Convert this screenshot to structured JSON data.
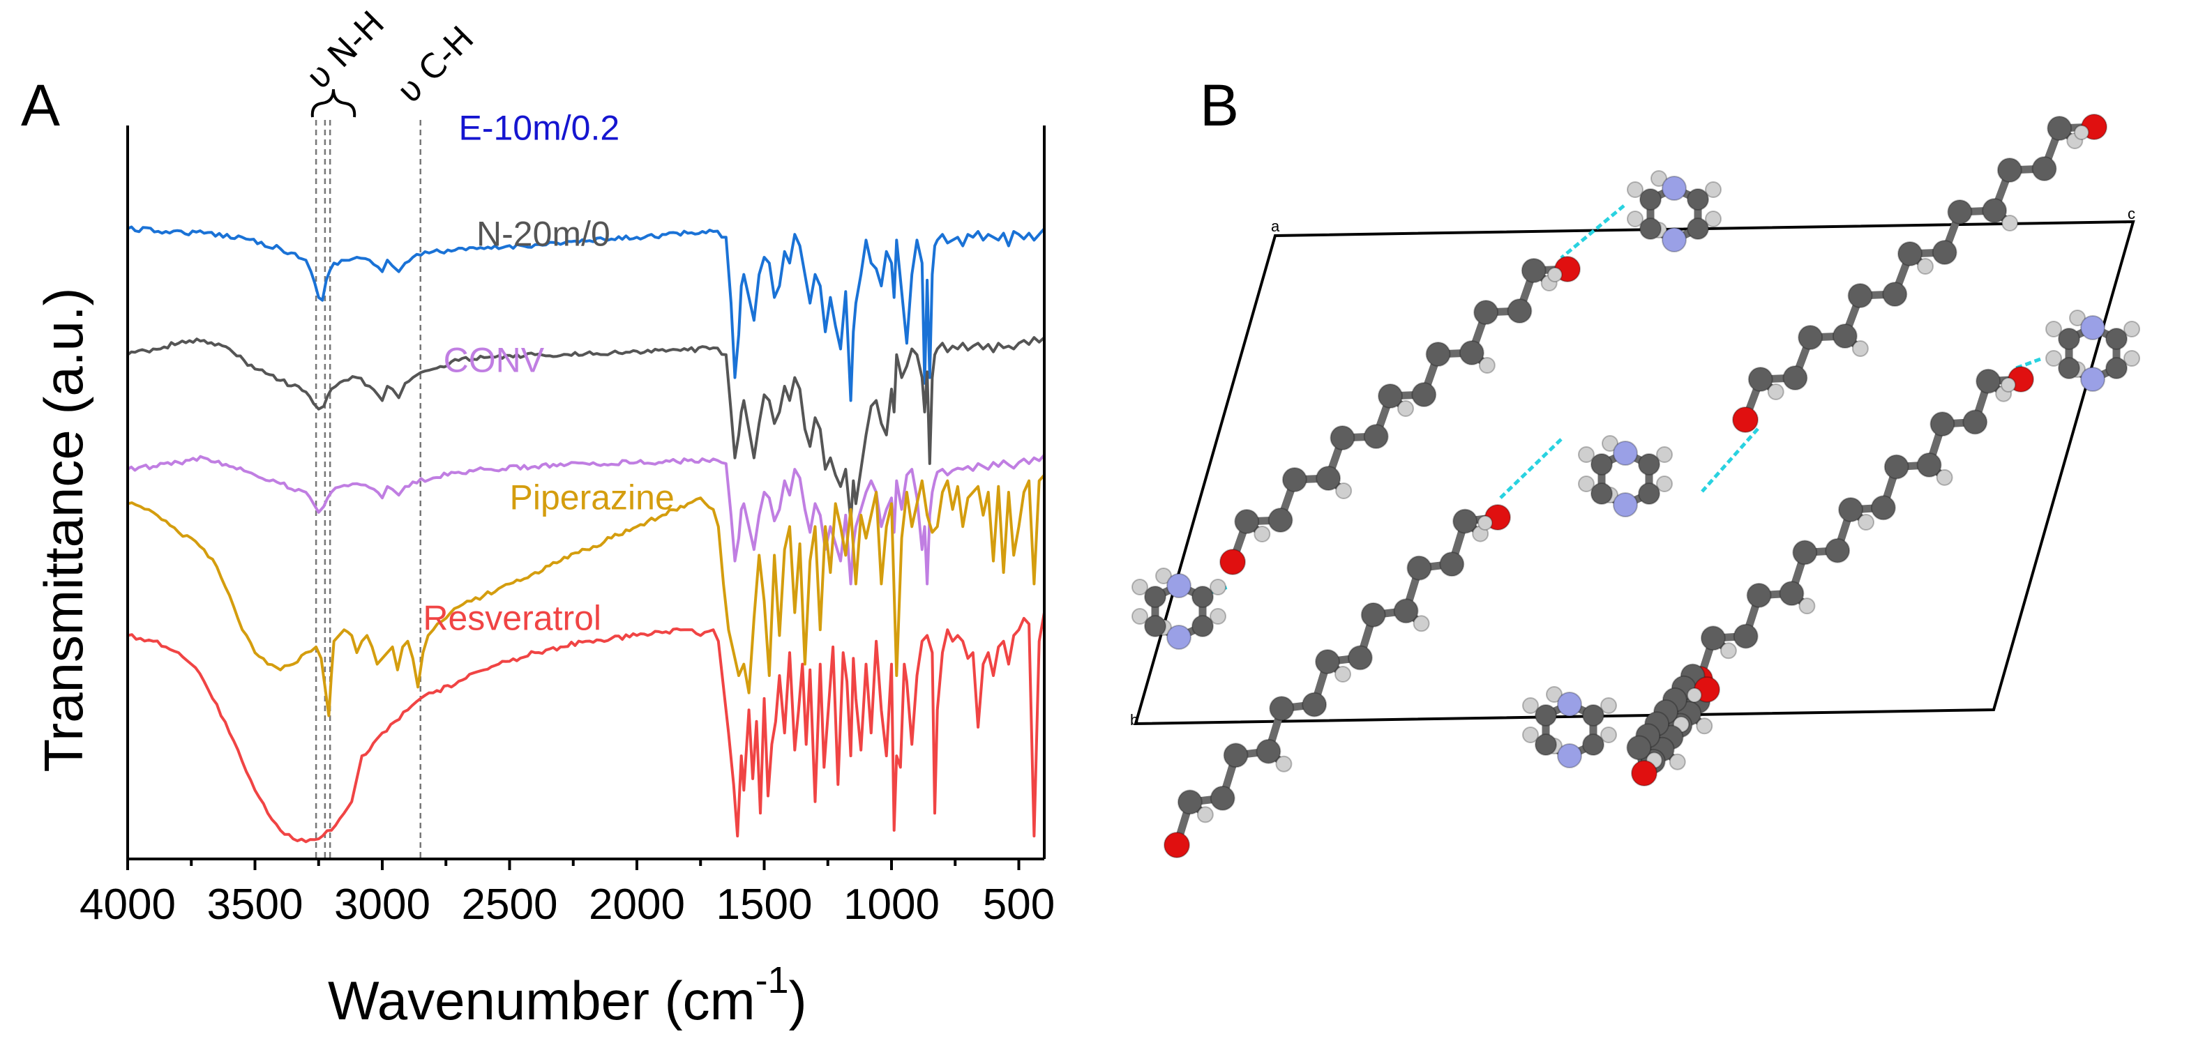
{
  "panels": {
    "a": "A",
    "b": "B"
  },
  "chart_data": {
    "type": "line",
    "title": "",
    "xlabel": "Wavenumber (cm",
    "xlabel_sup": "-1",
    "xlabel_close": ")",
    "ylabel": "Transmittance (a.u.)",
    "xlim": [
      4000,
      400
    ],
    "xticks": [
      4000,
      3500,
      3000,
      2500,
      2000,
      1500,
      1000,
      500
    ],
    "grid": false,
    "y_units": "arbitrary (stacked, offset)",
    "colors": {
      "E-10m/0.2": "#1a72d6",
      "N-20m/0": "#555555",
      "CONV": "#c07ee2",
      "Piperazine": "#d49d0e",
      "Resveratrol": "#f04444",
      "label_E": "#1515d0"
    },
    "annotations": [
      {
        "text": "υ N-H",
        "positions": [
          3260,
          3225,
          3205
        ]
      },
      {
        "text": "υ C-H",
        "positions": [
          2850
        ]
      }
    ],
    "series": [
      {
        "name": "E-10m/0.2",
        "label_pos": [
          2700,
          0.975
        ],
        "x": [
          4000,
          3850,
          3700,
          3550,
          3400,
          3300,
          3280,
          3250,
          3235,
          3220,
          3190,
          3100,
          3050,
          3000,
          2980,
          2960,
          2935,
          2910,
          2880,
          2800,
          2600,
          2400,
          2200,
          2000,
          1800,
          1700,
          1650,
          1630,
          1615,
          1600,
          1590,
          1580,
          1560,
          1540,
          1520,
          1500,
          1480,
          1460,
          1440,
          1420,
          1400,
          1380,
          1360,
          1340,
          1320,
          1300,
          1280,
          1260,
          1240,
          1220,
          1200,
          1180,
          1160,
          1150,
          1140,
          1120,
          1100,
          1080,
          1060,
          1040,
          1020,
          1000,
          990,
          980,
          960,
          940,
          920,
          900,
          880,
          870,
          860,
          850,
          840,
          830,
          820,
          800,
          780,
          760,
          740,
          720,
          700,
          680,
          660,
          640,
          620,
          600,
          580,
          560,
          540,
          520,
          500,
          480,
          460,
          440,
          420,
          400
        ],
        "y": [
          0.82,
          0.815,
          0.812,
          0.805,
          0.785,
          0.765,
          0.745,
          0.7,
          0.695,
          0.73,
          0.76,
          0.77,
          0.765,
          0.745,
          0.765,
          0.755,
          0.745,
          0.76,
          0.77,
          0.78,
          0.785,
          0.792,
          0.798,
          0.805,
          0.812,
          0.815,
          0.805,
          0.69,
          0.56,
          0.635,
          0.72,
          0.74,
          0.7,
          0.66,
          0.74,
          0.77,
          0.76,
          0.7,
          0.72,
          0.78,
          0.76,
          0.81,
          0.79,
          0.74,
          0.69,
          0.74,
          0.72,
          0.64,
          0.7,
          0.65,
          0.61,
          0.71,
          0.52,
          0.64,
          0.69,
          0.74,
          0.8,
          0.76,
          0.75,
          0.72,
          0.78,
          0.76,
          0.7,
          0.8,
          0.71,
          0.62,
          0.74,
          0.8,
          0.76,
          0.55,
          0.73,
          0.56,
          0.74,
          0.79,
          0.8,
          0.81,
          0.795,
          0.8,
          0.805,
          0.79,
          0.81,
          0.805,
          0.815,
          0.8,
          0.81,
          0.805,
          0.8,
          0.812,
          0.79,
          0.815,
          0.81,
          0.802,
          0.812,
          0.8,
          0.81,
          0.82
        ]
      },
      {
        "name": "N-20m/0",
        "label_pos": [
          2630,
          0.79
        ],
        "x": [
          4000,
          3900,
          3800,
          3700,
          3600,
          3500,
          3400,
          3300,
          3270,
          3250,
          3230,
          3200,
          3150,
          3100,
          3050,
          3000,
          2980,
          2960,
          2935,
          2910,
          2880,
          2800,
          2700,
          2600,
          2400,
          2200,
          2000,
          1800,
          1700,
          1650,
          1630,
          1615,
          1600,
          1590,
          1580,
          1560,
          1540,
          1520,
          1500,
          1480,
          1460,
          1440,
          1420,
          1400,
          1380,
          1360,
          1340,
          1320,
          1300,
          1280,
          1260,
          1240,
          1220,
          1200,
          1180,
          1160,
          1150,
          1140,
          1120,
          1100,
          1080,
          1060,
          1040,
          1020,
          1000,
          990,
          980,
          960,
          940,
          920,
          900,
          880,
          870,
          860,
          850,
          840,
          830,
          820,
          800,
          780,
          760,
          740,
          720,
          700,
          680,
          660,
          640,
          620,
          600,
          580,
          560,
          540,
          520,
          500,
          480,
          460,
          440,
          420,
          400
        ],
        "y": [
          0.6,
          0.61,
          0.62,
          0.625,
          0.61,
          0.575,
          0.555,
          0.535,
          0.515,
          0.505,
          0.51,
          0.54,
          0.555,
          0.56,
          0.545,
          0.52,
          0.545,
          0.54,
          0.525,
          0.55,
          0.56,
          0.575,
          0.59,
          0.595,
          0.6,
          0.602,
          0.606,
          0.608,
          0.612,
          0.6,
          0.5,
          0.42,
          0.46,
          0.5,
          0.52,
          0.47,
          0.42,
          0.48,
          0.53,
          0.52,
          0.48,
          0.5,
          0.545,
          0.52,
          0.56,
          0.54,
          0.47,
          0.44,
          0.49,
          0.47,
          0.4,
          0.42,
          0.39,
          0.37,
          0.4,
          0.31,
          0.38,
          0.34,
          0.4,
          0.46,
          0.51,
          0.52,
          0.48,
          0.46,
          0.54,
          0.5,
          0.6,
          0.56,
          0.58,
          0.61,
          0.6,
          0.56,
          0.5,
          0.57,
          0.41,
          0.56,
          0.6,
          0.61,
          0.62,
          0.605,
          0.615,
          0.61,
          0.62,
          0.608,
          0.615,
          0.62,
          0.61,
          0.618,
          0.605,
          0.62,
          0.612,
          0.615,
          0.61,
          0.62,
          0.625,
          0.618,
          0.63,
          0.622,
          0.63
        ]
      },
      {
        "name": "CONV",
        "label_pos": [
          2760,
          0.57
        ],
        "x": [
          4000,
          3900,
          3800,
          3700,
          3600,
          3500,
          3400,
          3300,
          3270,
          3250,
          3230,
          3200,
          3150,
          3100,
          3050,
          3000,
          2980,
          2960,
          2935,
          2910,
          2880,
          2800,
          2700,
          2600,
          2400,
          2200,
          2000,
          1800,
          1700,
          1650,
          1630,
          1615,
          1600,
          1590,
          1580,
          1560,
          1540,
          1520,
          1500,
          1480,
          1460,
          1440,
          1420,
          1400,
          1380,
          1360,
          1340,
          1320,
          1300,
          1280,
          1260,
          1240,
          1220,
          1200,
          1180,
          1160,
          1150,
          1140,
          1120,
          1100,
          1080,
          1060,
          1040,
          1020,
          1000,
          990,
          980,
          960,
          940,
          920,
          900,
          880,
          870,
          860,
          850,
          840,
          830,
          820,
          800,
          780,
          760,
          740,
          720,
          700,
          680,
          660,
          640,
          620,
          600,
          580,
          560,
          540,
          520,
          500,
          480,
          460,
          440,
          420,
          400
        ],
        "y": [
          0.4,
          0.405,
          0.412,
          0.42,
          0.405,
          0.39,
          0.375,
          0.36,
          0.34,
          0.325,
          0.335,
          0.36,
          0.372,
          0.375,
          0.368,
          0.35,
          0.37,
          0.365,
          0.355,
          0.37,
          0.378,
          0.385,
          0.395,
          0.4,
          0.405,
          0.41,
          0.412,
          0.415,
          0.418,
          0.41,
          0.32,
          0.24,
          0.28,
          0.33,
          0.34,
          0.3,
          0.26,
          0.32,
          0.36,
          0.35,
          0.31,
          0.33,
          0.38,
          0.355,
          0.4,
          0.385,
          0.33,
          0.29,
          0.34,
          0.32,
          0.26,
          0.3,
          0.27,
          0.24,
          0.32,
          0.2,
          0.27,
          0.3,
          0.33,
          0.36,
          0.38,
          0.36,
          0.3,
          0.33,
          0.35,
          0.29,
          0.38,
          0.33,
          0.39,
          0.4,
          0.35,
          0.26,
          0.3,
          0.2,
          0.32,
          0.36,
          0.38,
          0.395,
          0.4,
          0.39,
          0.398,
          0.402,
          0.4,
          0.405,
          0.398,
          0.41,
          0.405,
          0.4,
          0.412,
          0.405,
          0.415,
          0.408,
          0.402,
          0.412,
          0.418,
          0.41,
          0.42,
          0.415,
          0.425
        ]
      },
      {
        "name": "Piperazine",
        "label_pos": [
          2500,
          0.33
        ],
        "x": [
          4000,
          3950,
          3900,
          3850,
          3800,
          3750,
          3700,
          3650,
          3600,
          3550,
          3500,
          3450,
          3400,
          3350,
          3300,
          3260,
          3240,
          3225,
          3210,
          3200,
          3190,
          3170,
          3150,
          3120,
          3100,
          3080,
          3060,
          3040,
          3020,
          3000,
          2980,
          2960,
          2940,
          2920,
          2900,
          2880,
          2860,
          2840,
          2820,
          2800,
          2750,
          2700,
          2650,
          2600,
          2500,
          2400,
          2300,
          2200,
          2100,
          2000,
          1900,
          1800,
          1750,
          1700,
          1680,
          1660,
          1640,
          1620,
          1600,
          1580,
          1560,
          1540,
          1520,
          1500,
          1480,
          1460,
          1440,
          1420,
          1400,
          1380,
          1360,
          1340,
          1320,
          1300,
          1280,
          1260,
          1240,
          1220,
          1200,
          1180,
          1160,
          1140,
          1120,
          1100,
          1080,
          1060,
          1040,
          1020,
          1000,
          980,
          960,
          940,
          920,
          900,
          880,
          860,
          840,
          820,
          800,
          780,
          760,
          740,
          720,
          700,
          680,
          660,
          640,
          620,
          600,
          580,
          560,
          540,
          520,
          500,
          480,
          460,
          440,
          420,
          400
        ],
        "y": [
          0.34,
          0.335,
          0.325,
          0.31,
          0.29,
          0.28,
          0.26,
          0.23,
          0.18,
          0.12,
          0.08,
          0.06,
          0.05,
          0.06,
          0.08,
          0.09,
          0.07,
          0.02,
          -0.03,
          0.04,
          0.1,
          0.11,
          0.12,
          0.11,
          0.08,
          0.1,
          0.11,
          0.09,
          0.06,
          0.07,
          0.08,
          0.09,
          0.05,
          0.09,
          0.1,
          0.07,
          0.02,
          0.08,
          0.11,
          0.12,
          0.14,
          0.16,
          0.17,
          0.18,
          0.2,
          0.22,
          0.24,
          0.26,
          0.28,
          0.3,
          0.32,
          0.34,
          0.35,
          0.33,
          0.3,
          0.2,
          0.12,
          0.08,
          0.04,
          0.06,
          0.01,
          0.14,
          0.25,
          0.17,
          0.04,
          0.25,
          0.11,
          0.26,
          0.3,
          0.15,
          0.27,
          0.06,
          0.24,
          0.3,
          0.12,
          0.3,
          0.22,
          0.34,
          0.3,
          0.25,
          0.33,
          0.2,
          0.32,
          0.28,
          0.32,
          0.36,
          0.2,
          0.3,
          0.34,
          0.04,
          0.28,
          0.36,
          0.3,
          0.34,
          0.38,
          0.32,
          0.29,
          0.3,
          0.36,
          0.38,
          0.33,
          0.37,
          0.3,
          0.35,
          0.36,
          0.37,
          0.32,
          0.36,
          0.24,
          0.37,
          0.22,
          0.36,
          0.25,
          0.3,
          0.36,
          0.38,
          0.2,
          0.38,
          0.39
        ]
      },
      {
        "name": "Resveratrol",
        "label_pos": [
          2840,
          0.12
        ],
        "x": [
          4000,
          3950,
          3900,
          3850,
          3800,
          3750,
          3700,
          3650,
          3600,
          3550,
          3500,
          3450,
          3400,
          3350,
          3300,
          3250,
          3200,
          3150,
          3120,
          3100,
          3080,
          3050,
          3020,
          3000,
          2950,
          2900,
          2850,
          2800,
          2700,
          2600,
          2500,
          2400,
          2300,
          2200,
          2100,
          2000,
          1900,
          1800,
          1750,
          1700,
          1680,
          1660,
          1640,
          1620,
          1605,
          1590,
          1580,
          1560,
          1545,
          1530,
          1515,
          1500,
          1485,
          1470,
          1455,
          1440,
          1420,
          1400,
          1380,
          1365,
          1350,
          1335,
          1320,
          1300,
          1280,
          1265,
          1250,
          1230,
          1210,
          1190,
          1175,
          1160,
          1150,
          1140,
          1120,
          1100,
          1080,
          1060,
          1040,
          1020,
          1000,
          990,
          980,
          965,
          950,
          940,
          920,
          900,
          880,
          860,
          840,
          830,
          820,
          800,
          780,
          760,
          740,
          720,
          700,
          680,
          660,
          640,
          620,
          600,
          580,
          560,
          540,
          520,
          500,
          480,
          460,
          440,
          420,
          400
        ],
        "y": [
          0.11,
          0.105,
          0.1,
          0.09,
          0.08,
          0.06,
          0.03,
          -0.01,
          -0.06,
          -0.11,
          -0.16,
          -0.2,
          -0.23,
          -0.245,
          -0.25,
          -0.245,
          -0.23,
          -0.2,
          -0.18,
          -0.14,
          -0.1,
          -0.09,
          -0.07,
          -0.06,
          -0.04,
          -0.02,
          0.0,
          0.01,
          0.03,
          0.05,
          0.065,
          0.08,
          0.09,
          0.1,
          0.105,
          0.11,
          0.115,
          0.12,
          0.11,
          0.12,
          0.1,
          0.02,
          -0.06,
          -0.15,
          -0.24,
          -0.1,
          -0.16,
          -0.02,
          -0.14,
          -0.04,
          -0.2,
          0.0,
          -0.17,
          -0.08,
          -0.04,
          0.04,
          -0.06,
          0.08,
          -0.09,
          -0.02,
          0.06,
          -0.08,
          0.05,
          -0.18,
          0.06,
          -0.12,
          -0.03,
          0.09,
          -0.15,
          0.08,
          0.03,
          -0.1,
          0.07,
          0.0,
          -0.09,
          0.06,
          -0.06,
          0.1,
          -0.02,
          -0.1,
          0.06,
          -0.23,
          -0.1,
          -0.12,
          0.06,
          0.03,
          -0.08,
          0.04,
          0.1,
          0.11,
          0.08,
          -0.2,
          -0.02,
          0.08,
          0.12,
          0.1,
          0.11,
          0.1,
          0.07,
          0.08,
          -0.05,
          0.06,
          0.08,
          0.04,
          0.09,
          0.1,
          0.06,
          0.11,
          0.12,
          0.14,
          0.13,
          -0.24,
          0.1,
          0.15
        ]
      }
    ]
  },
  "structure": {
    "cell_labels": {
      "a": "a",
      "b": "b",
      "c": "c"
    }
  }
}
